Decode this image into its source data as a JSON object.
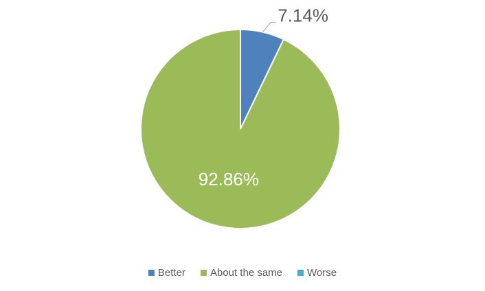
{
  "chart_data": {
    "type": "pie",
    "categories": [
      "Better",
      "About the same",
      "Worse"
    ],
    "values": [
      7.14,
      92.86,
      0
    ],
    "value_labels": [
      "7.14%",
      "92.86%",
      null
    ],
    "colors": [
      "#4f81bd",
      "#9bbb59",
      "#4bacc6"
    ],
    "legend": "bottom"
  }
}
